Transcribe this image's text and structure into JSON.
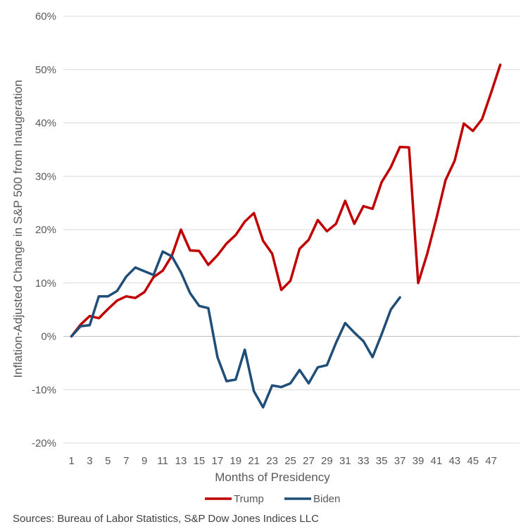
{
  "chart_data": {
    "type": "line",
    "title": "",
    "xlabel": "Months of Presidency",
    "ylabel": "Inflation-Adjusted Change in S&P 500 from Inaugeration",
    "ylim": [
      -20,
      60
    ],
    "y_ticks": [
      "-20%",
      "-10%",
      "0%",
      "10%",
      "20%",
      "30%",
      "40%",
      "50%",
      "60%"
    ],
    "x_ticks": [
      "1",
      "3",
      "5",
      "7",
      "9",
      "11",
      "13",
      "15",
      "17",
      "19",
      "21",
      "23",
      "25",
      "27",
      "29",
      "31",
      "33",
      "35",
      "37",
      "39",
      "41",
      "43",
      "45",
      "47"
    ],
    "grid": "horizontal",
    "legend_position": "bottom",
    "series": [
      {
        "name": "Trump",
        "color": "#c00000",
        "values": [
          0,
          2.2,
          3.8,
          3.4,
          5.1,
          6.7,
          7.5,
          7.2,
          8.3,
          11.1,
          12.3,
          15.1,
          20.0,
          16.1,
          16.0,
          13.4,
          15.2,
          17.4,
          19.0,
          21.5,
          23.1,
          17.9,
          15.5,
          8.7,
          10.4,
          16.4,
          18.1,
          21.8,
          19.7,
          21.1,
          25.4,
          21.1,
          24.4,
          23.9,
          28.9,
          31.7,
          35.5,
          35.4,
          10.0,
          15.5,
          22.1,
          29.3,
          32.9,
          39.9,
          38.5,
          40.7,
          45.7,
          50.9
        ]
      },
      {
        "name": "Biden",
        "color": "#1f4e79",
        "values": [
          0,
          1.9,
          2.1,
          7.5,
          7.5,
          8.5,
          11.2,
          12.9,
          12.2,
          11.5,
          15.9,
          15.0,
          12.0,
          8.1,
          5.7,
          5.3,
          -3.9,
          -8.4,
          -8.1,
          -2.5,
          -10.3,
          -13.3,
          -9.2,
          -9.5,
          -8.8,
          -6.3,
          -8.8,
          -5.8,
          -5.4,
          -1.2,
          2.5,
          0.7,
          -0.9,
          -3.9,
          0.4,
          5.0,
          7.3
        ]
      }
    ]
  },
  "source": "Sources: Bureau of Labor Statistics, S&P Dow Jones Indices LLC"
}
